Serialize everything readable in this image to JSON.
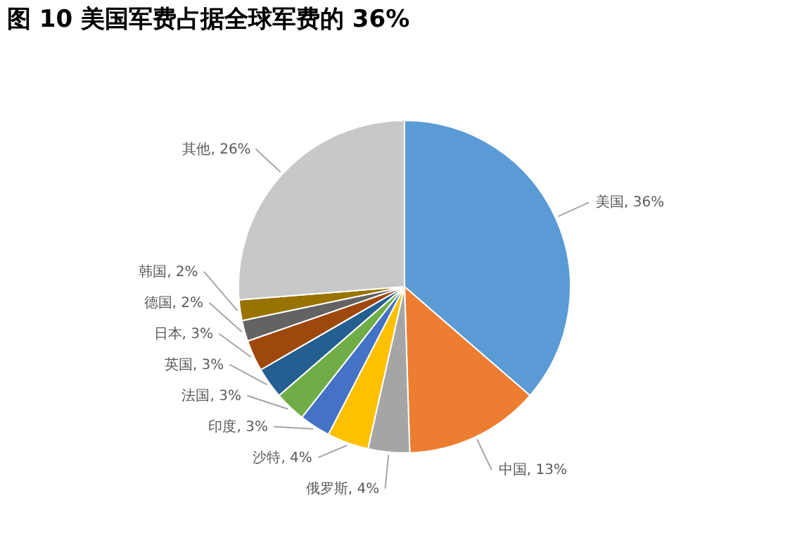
{
  "chart_data": {
    "type": "pie",
    "title": "图 10 美国军费占据全球军费的 36%",
    "categories": [
      "美国",
      "中国",
      "俄罗斯",
      "沙特",
      "印度",
      "法国",
      "英国",
      "日本",
      "德国",
      "韩国",
      "其他"
    ],
    "values": [
      36,
      13,
      4,
      4,
      3,
      3,
      3,
      3,
      2,
      2,
      26
    ],
    "colors": [
      "#5b9bd5",
      "#ed7d31",
      "#a5a5a5",
      "#ffc000",
      "#4472c4",
      "#70ad47",
      "#255e91",
      "#9e480e",
      "#636363",
      "#997300",
      "#c8c8c8"
    ],
    "value_labels": [
      ", 36%",
      ", 13%",
      ", 4%",
      ", 4%",
      ", 3%",
      ", 3%",
      ", 3%",
      ", 3%",
      ", 2%",
      ", 2%",
      ", 26%"
    ]
  }
}
